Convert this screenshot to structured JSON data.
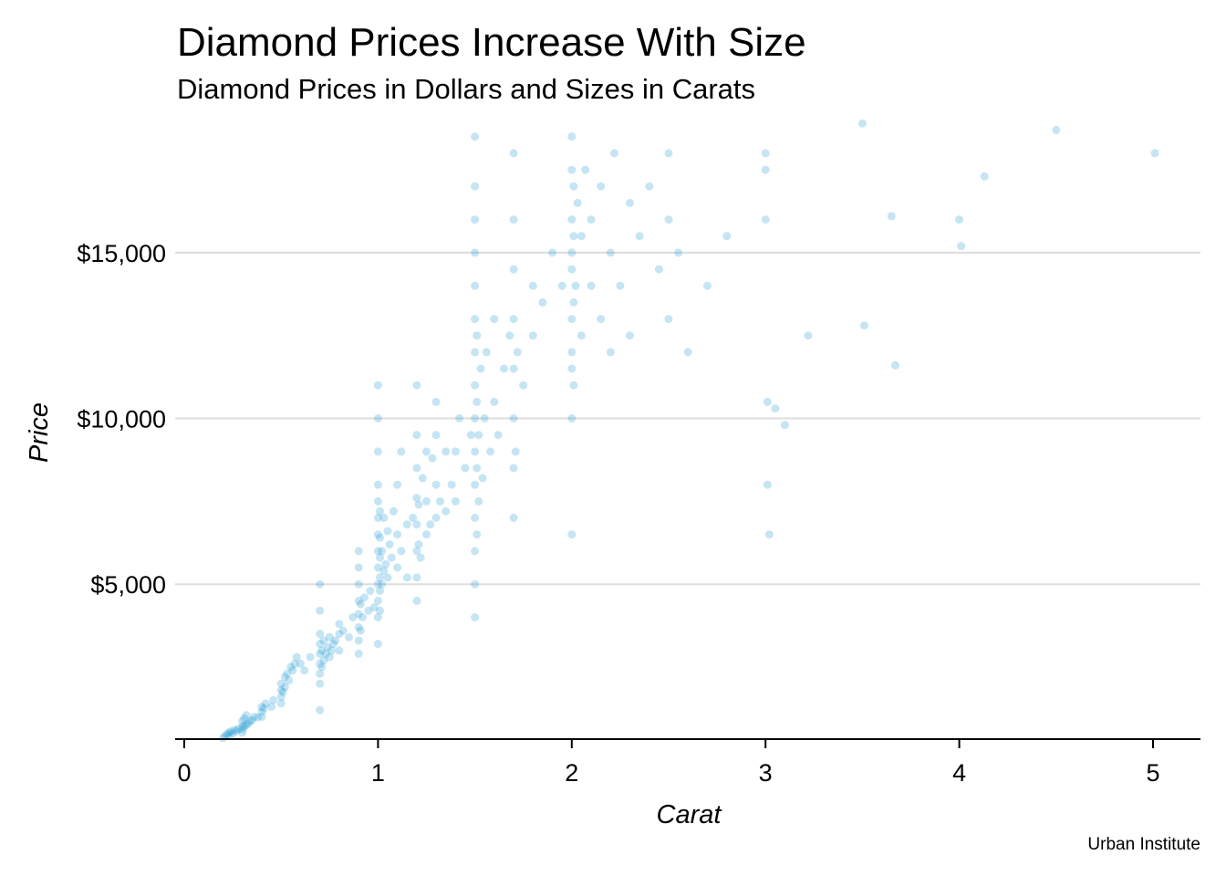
{
  "title": "Diamond Prices Increase With Size",
  "subtitle": "Diamond Prices in Dollars and Sizes in Carats",
  "caption": "Urban Institute",
  "colors": {
    "point": "#1696d2",
    "grid": "#dedddd",
    "axis": "#000000"
  },
  "chart_data": {
    "type": "scatter",
    "title": "Diamond Prices Increase With Size",
    "subtitle": "Diamond Prices in Dollars and Sizes in Carats",
    "xlabel": "Carat",
    "ylabel": "Price",
    "xlim": [
      0,
      5.25
    ],
    "ylim": [
      326,
      18823
    ],
    "x_ticks": [
      0,
      1,
      2,
      3,
      4,
      5
    ],
    "x_tick_labels": [
      "0",
      "1",
      "2",
      "3",
      "4",
      "5"
    ],
    "y_ticks": [
      5000,
      10000,
      15000
    ],
    "y_tick_labels": [
      "$5,000",
      "$10,000",
      "$15,000"
    ],
    "grid": "horizontal major",
    "legend": "none",
    "point_opacity": 0.1,
    "points": [
      [
        0.2,
        360
      ],
      [
        0.21,
        420
      ],
      [
        0.22,
        480
      ],
      [
        0.23,
        430
      ],
      [
        0.23,
        520
      ],
      [
        0.24,
        560
      ],
      [
        0.25,
        500
      ],
      [
        0.26,
        600
      ],
      [
        0.27,
        560
      ],
      [
        0.28,
        640
      ],
      [
        0.3,
        520
      ],
      [
        0.3,
        620
      ],
      [
        0.3,
        720
      ],
      [
        0.3,
        880
      ],
      [
        0.31,
        700
      ],
      [
        0.31,
        950
      ],
      [
        0.32,
        750
      ],
      [
        0.32,
        1050
      ],
      [
        0.33,
        800
      ],
      [
        0.34,
        860
      ],
      [
        0.35,
        900
      ],
      [
        0.36,
        1000
      ],
      [
        0.38,
        980
      ],
      [
        0.4,
        1000
      ],
      [
        0.4,
        1150
      ],
      [
        0.4,
        1300
      ],
      [
        0.41,
        1250
      ],
      [
        0.42,
        1400
      ],
      [
        0.45,
        1300
      ],
      [
        0.46,
        1500
      ],
      [
        0.5,
        1400
      ],
      [
        0.5,
        1600
      ],
      [
        0.5,
        1800
      ],
      [
        0.5,
        2000
      ],
      [
        0.51,
        1750
      ],
      [
        0.52,
        2200
      ],
      [
        0.52,
        1900
      ],
      [
        0.53,
        2300
      ],
      [
        0.54,
        2100
      ],
      [
        0.55,
        2500
      ],
      [
        0.56,
        2400
      ],
      [
        0.57,
        2600
      ],
      [
        0.58,
        2800
      ],
      [
        0.6,
        2600
      ],
      [
        0.62,
        2400
      ],
      [
        0.65,
        2800
      ],
      [
        0.7,
        1200
      ],
      [
        0.7,
        2000
      ],
      [
        0.7,
        2300
      ],
      [
        0.7,
        2600
      ],
      [
        0.7,
        2900
      ],
      [
        0.7,
        3200
      ],
      [
        0.7,
        3500
      ],
      [
        0.7,
        4200
      ],
      [
        0.7,
        5000
      ],
      [
        0.71,
        2500
      ],
      [
        0.71,
        3000
      ],
      [
        0.72,
        2700
      ],
      [
        0.72,
        3300
      ],
      [
        0.73,
        2900
      ],
      [
        0.74,
        3100
      ],
      [
        0.75,
        2800
      ],
      [
        0.75,
        3400
      ],
      [
        0.76,
        3000
      ],
      [
        0.77,
        3200
      ],
      [
        0.78,
        3300
      ],
      [
        0.8,
        3000
      ],
      [
        0.8,
        3500
      ],
      [
        0.8,
        3800
      ],
      [
        0.82,
        3600
      ],
      [
        0.85,
        3400
      ],
      [
        0.87,
        4000
      ],
      [
        0.9,
        2900
      ],
      [
        0.9,
        3300
      ],
      [
        0.9,
        3700
      ],
      [
        0.9,
        4100
      ],
      [
        0.9,
        4500
      ],
      [
        0.9,
        5000
      ],
      [
        0.9,
        5500
      ],
      [
        0.9,
        6000
      ],
      [
        0.91,
        3600
      ],
      [
        0.91,
        4400
      ],
      [
        0.92,
        4000
      ],
      [
        0.93,
        4600
      ],
      [
        0.95,
        4200
      ],
      [
        0.96,
        4800
      ],
      [
        0.98,
        4300
      ],
      [
        1.0,
        3200
      ],
      [
        1.0,
        4000
      ],
      [
        1.0,
        4500
      ],
      [
        1.0,
        5000
      ],
      [
        1.0,
        5500
      ],
      [
        1.0,
        6000
      ],
      [
        1.0,
        6500
      ],
      [
        1.0,
        7000
      ],
      [
        1.0,
        7500
      ],
      [
        1.0,
        8000
      ],
      [
        1.0,
        9000
      ],
      [
        1.0,
        10000
      ],
      [
        1.0,
        11000
      ],
      [
        1.01,
        4200
      ],
      [
        1.01,
        4800
      ],
      [
        1.01,
        5200
      ],
      [
        1.01,
        5800
      ],
      [
        1.01,
        6400
      ],
      [
        1.01,
        7200
      ],
      [
        1.02,
        5000
      ],
      [
        1.02,
        6000
      ],
      [
        1.03,
        5400
      ],
      [
        1.03,
        7000
      ],
      [
        1.04,
        5600
      ],
      [
        1.05,
        5200
      ],
      [
        1.05,
        6600
      ],
      [
        1.06,
        6200
      ],
      [
        1.07,
        5800
      ],
      [
        1.08,
        7200
      ],
      [
        1.1,
        5500
      ],
      [
        1.1,
        6500
      ],
      [
        1.1,
        8000
      ],
      [
        1.12,
        6000
      ],
      [
        1.12,
        9000
      ],
      [
        1.15,
        6800
      ],
      [
        1.15,
        5200
      ],
      [
        1.18,
        7000
      ],
      [
        1.2,
        4500
      ],
      [
        1.2,
        5200
      ],
      [
        1.2,
        6000
      ],
      [
        1.2,
        6800
      ],
      [
        1.2,
        7600
      ],
      [
        1.2,
        8500
      ],
      [
        1.2,
        9500
      ],
      [
        1.2,
        11000
      ],
      [
        1.21,
        6200
      ],
      [
        1.21,
        7400
      ],
      [
        1.22,
        5800
      ],
      [
        1.23,
        8200
      ],
      [
        1.25,
        6500
      ],
      [
        1.25,
        7500
      ],
      [
        1.25,
        9000
      ],
      [
        1.27,
        6800
      ],
      [
        1.28,
        8800
      ],
      [
        1.3,
        7000
      ],
      [
        1.3,
        8000
      ],
      [
        1.3,
        9500
      ],
      [
        1.3,
        10500
      ],
      [
        1.32,
        7500
      ],
      [
        1.35,
        7200
      ],
      [
        1.35,
        9000
      ],
      [
        1.38,
        8000
      ],
      [
        1.4,
        9000
      ],
      [
        1.4,
        7500
      ],
      [
        1.42,
        10000
      ],
      [
        1.45,
        8500
      ],
      [
        1.48,
        9500
      ],
      [
        1.5,
        4000
      ],
      [
        1.5,
        5000
      ],
      [
        1.5,
        6000
      ],
      [
        1.5,
        7000
      ],
      [
        1.5,
        8000
      ],
      [
        1.5,
        9000
      ],
      [
        1.5,
        10000
      ],
      [
        1.5,
        11000
      ],
      [
        1.5,
        12000
      ],
      [
        1.5,
        13000
      ],
      [
        1.5,
        14000
      ],
      [
        1.5,
        15000
      ],
      [
        1.5,
        16000
      ],
      [
        1.5,
        17000
      ],
      [
        1.5,
        18500
      ],
      [
        1.51,
        6500
      ],
      [
        1.51,
        8500
      ],
      [
        1.51,
        10500
      ],
      [
        1.51,
        12500
      ],
      [
        1.52,
        7500
      ],
      [
        1.52,
        9500
      ],
      [
        1.53,
        11500
      ],
      [
        1.54,
        8200
      ],
      [
        1.55,
        10000
      ],
      [
        1.56,
        12000
      ],
      [
        1.58,
        9000
      ],
      [
        1.6,
        10500
      ],
      [
        1.6,
        13000
      ],
      [
        1.62,
        9500
      ],
      [
        1.65,
        11500
      ],
      [
        1.68,
        12500
      ],
      [
        1.7,
        7000
      ],
      [
        1.7,
        8500
      ],
      [
        1.7,
        10000
      ],
      [
        1.7,
        11500
      ],
      [
        1.7,
        13000
      ],
      [
        1.7,
        14500
      ],
      [
        1.7,
        16000
      ],
      [
        1.7,
        18000
      ],
      [
        1.71,
        9000
      ],
      [
        1.72,
        12000
      ],
      [
        1.75,
        11000
      ],
      [
        1.8,
        12500
      ],
      [
        1.8,
        14000
      ],
      [
        1.85,
        13500
      ],
      [
        1.9,
        15000
      ],
      [
        1.95,
        14000
      ],
      [
        2.0,
        10000
      ],
      [
        2.0,
        11500
      ],
      [
        2.0,
        13000
      ],
      [
        2.0,
        14500
      ],
      [
        2.0,
        16000
      ],
      [
        2.0,
        17500
      ],
      [
        2.0,
        18500
      ],
      [
        2.0,
        12000
      ],
      [
        2.0,
        15000
      ],
      [
        2.0,
        6500
      ],
      [
        2.01,
        11000
      ],
      [
        2.01,
        13500
      ],
      [
        2.01,
        15500
      ],
      [
        2.01,
        17000
      ],
      [
        2.02,
        14000
      ],
      [
        2.03,
        16500
      ],
      [
        2.05,
        12500
      ],
      [
        2.05,
        15500
      ],
      [
        2.07,
        17500
      ],
      [
        2.1,
        14000
      ],
      [
        2.1,
        16000
      ],
      [
        2.15,
        13000
      ],
      [
        2.15,
        17000
      ],
      [
        2.2,
        12000
      ],
      [
        2.2,
        15000
      ],
      [
        2.22,
        18000
      ],
      [
        2.25,
        14000
      ],
      [
        2.3,
        16500
      ],
      [
        2.3,
        12500
      ],
      [
        2.35,
        15500
      ],
      [
        2.4,
        17000
      ],
      [
        2.45,
        14500
      ],
      [
        2.5,
        16000
      ],
      [
        2.5,
        13000
      ],
      [
        2.5,
        18000
      ],
      [
        2.55,
        15000
      ],
      [
        2.6,
        12000
      ],
      [
        2.7,
        14000
      ],
      [
        2.8,
        15500
      ],
      [
        3.0,
        16000
      ],
      [
        3.0,
        17500
      ],
      [
        3.0,
        18000
      ],
      [
        3.01,
        10500
      ],
      [
        3.01,
        8000
      ],
      [
        3.02,
        6500
      ],
      [
        3.05,
        10300
      ],
      [
        3.1,
        9800
      ],
      [
        3.22,
        12500
      ],
      [
        3.5,
        18900
      ],
      [
        3.51,
        12800
      ],
      [
        3.65,
        16100
      ],
      [
        3.67,
        11600
      ],
      [
        4.0,
        16000
      ],
      [
        4.01,
        15200
      ],
      [
        4.13,
        17300
      ],
      [
        4.5,
        18700
      ],
      [
        5.01,
        18000
      ]
    ]
  }
}
